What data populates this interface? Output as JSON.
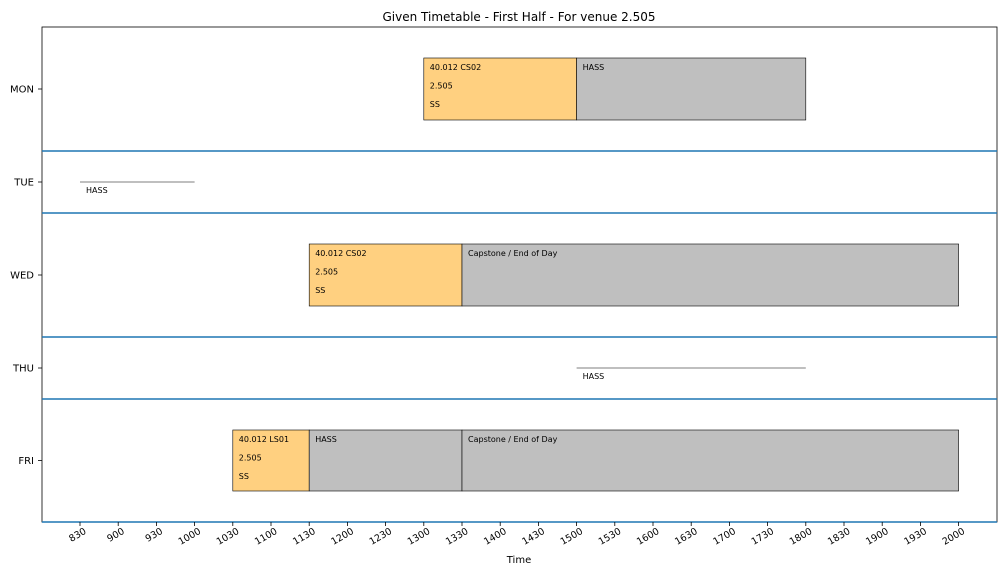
{
  "chart_data": {
    "type": "timetable",
    "title": "Given Timetable - First Half - For venue 2.505",
    "xlabel": "Time",
    "x_ticks": [
      "830",
      "900",
      "930",
      "1000",
      "1030",
      "1100",
      "1130",
      "1200",
      "1230",
      "1300",
      "1330",
      "1400",
      "1430",
      "1500",
      "1530",
      "1600",
      "1630",
      "1700",
      "1730",
      "1800",
      "1830",
      "1900",
      "1930",
      "2000"
    ],
    "days": [
      "MON",
      "TUE",
      "WED",
      "THU",
      "FRI"
    ],
    "colors": {
      "course": "#ffd080",
      "blocked": "#bfbfbf",
      "separator": "#1f77b4"
    },
    "blocks": [
      {
        "day": "MON",
        "start": "1300",
        "end": "1500",
        "kind": "course",
        "lines": [
          "40.012 CS02",
          "2.505",
          "SS"
        ]
      },
      {
        "day": "MON",
        "start": "1500",
        "end": "1800",
        "kind": "blocked",
        "lines": [
          "HASS"
        ]
      },
      {
        "day": "WED",
        "start": "1130",
        "end": "1330",
        "kind": "course",
        "lines": [
          "40.012 CS02",
          "2.505",
          "SS"
        ]
      },
      {
        "day": "WED",
        "start": "1330",
        "end": "2000",
        "kind": "blocked",
        "lines": [
          "Capstone / End of Day"
        ]
      },
      {
        "day": "FRI",
        "start": "1030",
        "end": "1130",
        "kind": "course",
        "lines": [
          "40.012 LS01",
          "2.505",
          "SS"
        ]
      },
      {
        "day": "FRI",
        "start": "1130",
        "end": "1330",
        "kind": "blocked",
        "lines": [
          "HASS"
        ]
      },
      {
        "day": "FRI",
        "start": "1330",
        "end": "2000",
        "kind": "blocked",
        "lines": [
          "Capstone / End of Day"
        ]
      }
    ],
    "markers": [
      {
        "day": "TUE",
        "start": "830",
        "end": "1000",
        "label": "HASS"
      },
      {
        "day": "THU",
        "start": "1500",
        "end": "1800",
        "label": "HASS"
      }
    ]
  }
}
